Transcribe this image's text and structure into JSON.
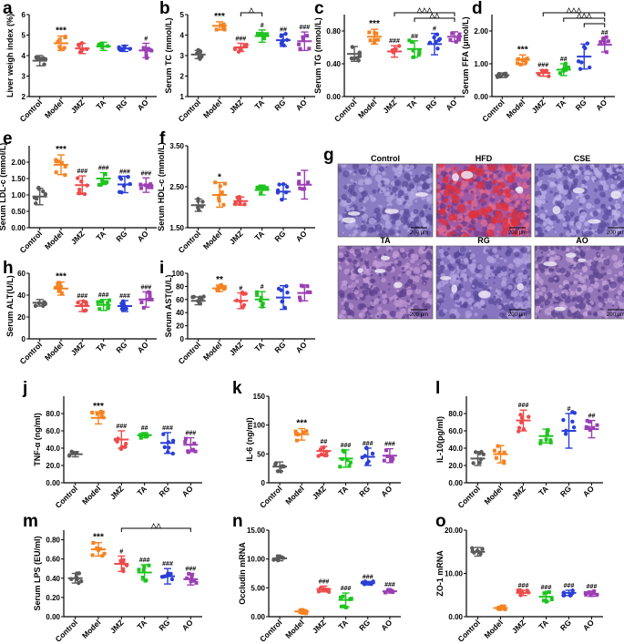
{
  "groups": [
    "Control",
    "Model",
    "JMZ",
    "TA",
    "RG",
    "AO"
  ],
  "colors": {
    "Control": "#5a5a5a",
    "Model": "#f58220",
    "JMZ": "#ee4b4b",
    "TA": "#1fc41f",
    "RG": "#2a3fd6",
    "AO": "#9b3fb4"
  },
  "chart_data": [
    {
      "id": "a",
      "type": "scatter",
      "letter": "a",
      "ylabel": "Liver weigh index (%)",
      "ylim": [
        2,
        6
      ],
      "yticks": [
        "2",
        "3",
        "4",
        "5",
        "6"
      ],
      "means": [
        3.75,
        4.6,
        4.35,
        4.45,
        4.35,
        4.25
      ],
      "sd": [
        0.25,
        0.35,
        0.25,
        0.2,
        0.15,
        0.35
      ],
      "sig": [
        "",
        "***",
        "",
        "",
        "",
        "#"
      ]
    },
    {
      "id": "b",
      "type": "scatter",
      "letter": "b",
      "ylabel": "Serum TC (mmol/L)",
      "ylim": [
        1,
        5
      ],
      "yticks": [
        "1",
        "2",
        "3",
        "4",
        "5"
      ],
      "means": [
        3.05,
        4.45,
        3.4,
        3.95,
        3.75,
        3.7
      ],
      "sd": [
        0.2,
        0.2,
        0.2,
        0.3,
        0.3,
        0.45
      ],
      "sig": [
        "",
        "***",
        "###",
        "#",
        "##",
        "###"
      ],
      "brackets": [
        {
          "from": 2,
          "to": 3,
          "label": "△"
        }
      ]
    },
    {
      "id": "c",
      "type": "scatter",
      "letter": "c",
      "ylabel": "Serum TG (mmol/L)",
      "ylim": [
        0,
        1.0
      ],
      "yticks": [
        "0.00",
        "0.40",
        "0.80"
      ],
      "means": [
        0.52,
        0.73,
        0.55,
        0.58,
        0.64,
        0.73
      ],
      "sd": [
        0.09,
        0.09,
        0.07,
        0.1,
        0.13,
        0.06
      ],
      "sig": [
        "",
        "***",
        "###",
        "##",
        "#",
        ""
      ],
      "brackets": [
        {
          "from": 2,
          "to": 5,
          "label": "△△△"
        },
        {
          "from": 3,
          "to": 5,
          "label": "△△"
        }
      ]
    },
    {
      "id": "d",
      "type": "scatter",
      "letter": "d",
      "ylabel": "Serum FFA (μmol/L)",
      "ylim": [
        0,
        2.5
      ],
      "yticks": [
        "0.00",
        "1.00",
        "2.00"
      ],
      "means": [
        0.65,
        1.12,
        0.72,
        0.82,
        1.22,
        1.58
      ],
      "sd": [
        0.07,
        0.15,
        0.1,
        0.18,
        0.38,
        0.22
      ],
      "sig": [
        "",
        "***",
        "###",
        "##",
        "",
        "##"
      ],
      "brackets": [
        {
          "from": 2,
          "to": 5,
          "label": "△△△"
        },
        {
          "from": 3,
          "to": 5,
          "label": "△△△"
        },
        {
          "from": 4,
          "to": 5,
          "label": ""
        }
      ]
    },
    {
      "id": "e",
      "type": "scatter",
      "letter": "e",
      "ylabel": "Serum LDL-c (mmol/L)",
      "ylim": [
        0,
        2.5
      ],
      "yticks": [
        "0.00",
        "0.50",
        "1.00",
        "1.50",
        "2.00"
      ],
      "means": [
        0.95,
        1.92,
        1.3,
        1.5,
        1.32,
        1.3
      ],
      "sd": [
        0.25,
        0.3,
        0.28,
        0.18,
        0.25,
        0.22
      ],
      "sig": [
        "",
        "***",
        "###",
        "###",
        "###",
        "###"
      ]
    },
    {
      "id": "f",
      "type": "scatter",
      "letter": "f",
      "ylabel": "Serum HDL-c (mmol/L)",
      "ylim": [
        1.5,
        3.5
      ],
      "yticks": [
        "1.50",
        "2.50",
        "3.50"
      ],
      "means": [
        2.05,
        2.3,
        2.15,
        2.42,
        2.38,
        2.55
      ],
      "sd": [
        0.15,
        0.3,
        0.1,
        0.12,
        0.18,
        0.35
      ],
      "sig": [
        "",
        "*",
        "",
        "",
        "",
        ""
      ]
    },
    {
      "id": "h",
      "type": "scatter",
      "letter": "h",
      "ylabel": "Serum ALT(U/L)",
      "ylim": [
        0,
        60
      ],
      "yticks": [
        "0",
        "20",
        "40",
        "60"
      ],
      "means": [
        33,
        46,
        30,
        31,
        30,
        36
      ],
      "sd": [
        3,
        6,
        5,
        5,
        5,
        7
      ],
      "sig": [
        "",
        "***",
        "###",
        "###",
        "###",
        "###"
      ]
    },
    {
      "id": "i",
      "type": "scatter",
      "letter": "i",
      "ylabel": "Serum AST(U/L)",
      "ylim": [
        0,
        100
      ],
      "yticks": [
        "0",
        "20",
        "40",
        "60",
        "80",
        "100"
      ],
      "means": [
        58,
        77,
        58,
        60,
        63,
        70
      ],
      "sd": [
        6,
        5,
        12,
        12,
        18,
        12
      ],
      "sig": [
        "",
        "**",
        "#",
        "#",
        "",
        ""
      ]
    },
    {
      "id": "j",
      "type": "scatter",
      "letter": "j",
      "ylabel": "TNF-α (ng/ml)",
      "ylim": [
        0,
        100
      ],
      "yticks": [
        "0.00",
        "20.0",
        "40.0",
        "60.0",
        "80.0"
      ],
      "means": [
        33,
        75,
        50,
        55,
        46,
        44
      ],
      "sd": [
        3,
        7,
        10,
        3,
        12,
        8
      ],
      "sig": [
        "",
        "***",
        "###",
        "##",
        "###",
        "###"
      ]
    },
    {
      "id": "k",
      "type": "scatter",
      "letter": "k",
      "ylabel": "IL-6 (ng/ml)",
      "ylim": [
        0,
        150
      ],
      "yticks": [
        "0",
        "50",
        "100",
        "150"
      ],
      "means": [
        28,
        84,
        55,
        42,
        45,
        47
      ],
      "sd": [
        8,
        10,
        8,
        15,
        15,
        12
      ],
      "sig": [
        "",
        "***",
        "##",
        "###",
        "###",
        "###"
      ]
    },
    {
      "id": "l",
      "type": "scatter",
      "letter": "l",
      "ylabel": "IL-10(pg/ml)",
      "ylim": [
        0,
        100
      ],
      "yticks": [
        "0.00",
        "20.0",
        "40.0",
        "60.0",
        "80.0"
      ],
      "means": [
        28,
        33,
        72,
        54,
        60,
        62
      ],
      "sd": [
        8,
        10,
        12,
        8,
        20,
        10
      ],
      "sig": [
        "",
        "",
        "###",
        "",
        "#",
        "##"
      ]
    },
    {
      "id": "m",
      "type": "scatter",
      "letter": "m",
      "ylabel": "Serum LPS (EU/ml)",
      "ylim": [
        0,
        0.9
      ],
      "yticks": [
        "0.00",
        "0.20",
        "0.40",
        "0.60",
        "0.80"
      ],
      "means": [
        0.4,
        0.7,
        0.55,
        0.46,
        0.42,
        0.39
      ],
      "sd": [
        0.05,
        0.07,
        0.08,
        0.08,
        0.08,
        0.06
      ],
      "sig": [
        "",
        "***",
        "#",
        "###",
        "###",
        "###"
      ],
      "brackets": [
        {
          "from": 2,
          "to": 5,
          "label": "△△"
        }
      ]
    },
    {
      "id": "n",
      "type": "scatter",
      "letter": "n",
      "ylabel": "Occludin mRNA",
      "ylim": [
        0,
        15
      ],
      "yticks": [
        "0.00",
        "5.00",
        "10.00",
        "15.00"
      ],
      "means": [
        10.1,
        0.9,
        4.8,
        2.9,
        5.8,
        4.4
      ],
      "sd": [
        0.4,
        0.3,
        0.5,
        1.2,
        0.3,
        0.3
      ],
      "sig": [
        "",
        "",
        "###",
        "###",
        "###",
        "###"
      ]
    },
    {
      "id": "o",
      "type": "scatter",
      "letter": "o",
      "ylabel": "ZO-1 mRNA",
      "ylim": [
        0,
        20
      ],
      "yticks": [
        "0.00",
        "10.00",
        "20.00"
      ],
      "means": [
        15,
        2.0,
        5.5,
        4.6,
        5.5,
        5.3
      ],
      "sd": [
        1.0,
        0.4,
        0.6,
        1.1,
        0.6,
        0.6
      ],
      "sig": [
        "",
        "",
        "###",
        "###",
        "###",
        "###"
      ]
    }
  ],
  "histology": {
    "letter": "g",
    "scale_bar": "200 μm",
    "images": [
      {
        "title": "Control",
        "base": "#8a7cc2",
        "hi": "#b7a9e3",
        "lo": "#5a4c9b",
        "red": 0
      },
      {
        "title": "HFD",
        "base": "#a05aa8",
        "hi": "#e46a8c",
        "lo": "#6f3c8c",
        "red": 1
      },
      {
        "title": "CSE",
        "base": "#8d80c9",
        "hi": "#c0b3ea",
        "lo": "#5c4fa0",
        "red": 0
      },
      {
        "title": "TA",
        "base": "#9170b5",
        "hi": "#c29dd9",
        "lo": "#5f4290",
        "red": 0
      },
      {
        "title": "RG",
        "base": "#8775bf",
        "hi": "#b4a3e0",
        "lo": "#574999",
        "red": 0
      },
      {
        "title": "AO",
        "base": "#9376b9",
        "hi": "#c3a5da",
        "lo": "#5d4590",
        "red": 0
      }
    ]
  }
}
